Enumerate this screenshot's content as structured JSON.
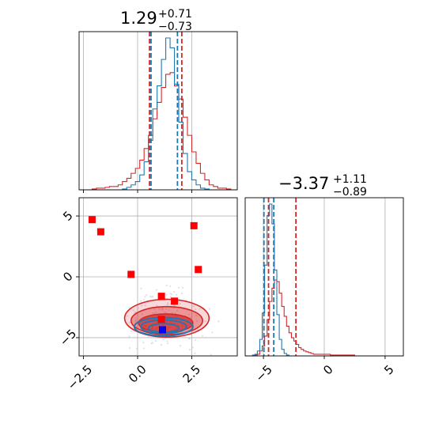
{
  "chart_data": {
    "type": "corner",
    "colors": {
      "series_a": "#1f77b4",
      "series_b": "#d62728",
      "marker_red": "#ff0000",
      "marker_blue": "#0000ff"
    },
    "grid": true,
    "parameters": [
      {
        "title": {
          "main": "1.29",
          "plus": "+0.71",
          "minus": "−0.73"
        },
        "xlim": [
          -2.7,
          4.6
        ],
        "series_a": {
          "quantile_lines": [
            0.62,
            1.84
          ],
          "hist_x": [
            -2.7,
            -2.5,
            -2.3,
            -2.1,
            -1.9,
            -1.7,
            -1.5,
            -1.3,
            -1.1,
            -0.9,
            -0.7,
            -0.5,
            -0.3,
            -0.1,
            0.1,
            0.3,
            0.5,
            0.7,
            0.9,
            1.1,
            1.3,
            1.5,
            1.7,
            1.9,
            2.1,
            2.3,
            2.5,
            2.7,
            2.9,
            3.1,
            3.3,
            3.5,
            3.7,
            3.9,
            4.1,
            4.3,
            4.6
          ],
          "hist_y": [
            0,
            0,
            0,
            0,
            0,
            0,
            0,
            0,
            0,
            0,
            0.5,
            1.5,
            3,
            5,
            9,
            17,
            30,
            49,
            63,
            79,
            92,
            86,
            64,
            41,
            22,
            11,
            6,
            3,
            1,
            0.5,
            0,
            0,
            0,
            0,
            0,
            0
          ]
        },
        "series_b": {
          "quantile_lines": [
            0.55,
            2.04
          ],
          "hist_x": [
            -2.7,
            -2.5,
            -2.3,
            -2.1,
            -1.9,
            -1.7,
            -1.5,
            -1.3,
            -1.1,
            -0.9,
            -0.7,
            -0.5,
            -0.3,
            -0.1,
            0.1,
            0.3,
            0.5,
            0.7,
            0.9,
            1.1,
            1.3,
            1.5,
            1.7,
            1.9,
            2.1,
            2.3,
            2.5,
            2.7,
            2.9,
            3.1,
            3.3,
            3.5,
            3.7,
            3.9,
            4.1,
            4.3,
            4.6
          ],
          "hist_y": [
            0,
            0,
            0,
            0.5,
            1,
            1,
            1.5,
            2,
            2,
            3,
            5,
            7,
            10,
            13,
            18,
            25,
            33,
            43,
            53,
            62,
            70,
            71,
            63,
            55,
            44,
            33,
            23,
            16,
            10,
            6,
            3,
            2,
            1,
            1,
            0.5,
            0
          ]
        }
      },
      {
        "title": {
          "main": "−3.37",
          "plus": "+1.11",
          "minus": "−0.89"
        },
        "xlim": [
          -6.5,
          6.5
        ],
        "series_a": {
          "quantile_lines": [
            -4.96,
            -4.15
          ],
          "hist_x": [
            -6.5,
            -6.3,
            -6.1,
            -5.9,
            -5.7,
            -5.5,
            -5.3,
            -5.1,
            -4.9,
            -4.7,
            -4.5,
            -4.3,
            -4.1,
            -3.9,
            -3.7,
            -3.5,
            -3.3,
            -3.1,
            -2.9,
            -2.7,
            -2.5,
            -2.3,
            -2.1,
            -1.9,
            -1.7,
            -1.5,
            -1.3,
            -1.1,
            -0.9,
            -0.7,
            -0.5,
            -0.3,
            -0.1,
            0.1,
            0.3,
            0.5,
            0.7,
            0.9,
            1.1,
            1.3,
            1.5,
            1.7,
            1.9,
            2.1,
            2.3,
            2.5,
            2.7,
            2.9,
            3.1,
            3.3,
            3.5,
            3.7,
            3.9,
            4.1,
            4.3,
            4.5,
            4.7,
            4.9,
            5.1,
            5.3,
            5.5,
            5.7,
            5.9,
            6.1,
            6.3,
            6.5
          ],
          "hist_y": [
            0,
            0,
            0,
            0.5,
            1,
            3,
            10,
            26,
            55,
            85,
            92,
            80,
            52,
            25,
            10,
            4,
            1.5,
            0.5,
            0,
            0,
            0,
            0,
            0,
            0,
            0,
            0,
            0,
            0,
            0,
            0,
            0,
            0,
            0,
            0,
            0,
            0,
            0,
            0,
            0,
            0,
            0,
            0,
            0,
            0,
            0,
            0,
            0,
            0,
            0,
            0,
            0,
            0,
            0,
            0,
            0,
            0,
            0,
            0,
            0,
            0,
            0,
            0,
            0,
            0,
            0
          ]
        },
        "series_b": {
          "quantile_lines": [
            -4.58,
            -2.33
          ],
          "hist_x": [
            -6.5,
            -6.3,
            -6.1,
            -5.9,
            -5.7,
            -5.5,
            -5.3,
            -5.1,
            -4.9,
            -4.7,
            -4.5,
            -4.3,
            -4.1,
            -3.9,
            -3.7,
            -3.5,
            -3.3,
            -3.1,
            -2.9,
            -2.7,
            -2.5,
            -2.3,
            -2.1,
            -1.9,
            -1.7,
            -1.5,
            -1.3,
            -1.1,
            -0.9,
            -0.7,
            -0.5,
            -0.3,
            -0.1,
            0.1,
            0.3,
            0.5,
            0.7,
            0.9,
            1.1,
            1.3,
            1.5,
            1.7,
            1.9,
            2.1,
            2.3,
            2.5,
            2.7,
            2.9,
            3.1,
            3.3,
            3.5,
            3.7,
            3.9,
            4.1,
            4.3,
            4.5,
            4.7,
            4.9,
            5.1,
            5.3,
            5.5,
            5.7,
            5.9,
            6.1,
            6.3,
            6.5
          ],
          "hist_y": [
            0,
            0,
            0,
            0,
            0.5,
            1,
            3,
            6,
            12,
            22,
            33,
            41,
            46,
            45,
            38,
            30,
            24,
            18,
            14,
            11,
            9,
            7,
            5,
            4,
            3,
            2.5,
            2,
            1.5,
            1,
            1,
            1,
            1,
            1,
            1,
            1,
            0.5,
            0.5,
            0.5,
            0.5,
            0.5,
            0.5,
            0.5,
            0.5,
            0.5,
            0.5,
            0,
            0,
            0,
            0,
            0,
            0,
            0,
            0,
            0,
            0,
            0,
            0,
            0,
            0,
            0,
            0,
            0,
            0,
            0,
            0
          ]
        }
      }
    ],
    "joint": {
      "xlim": [
        -2.7,
        4.6
      ],
      "ylim": [
        -6.5,
        6.5
      ],
      "red_markers": [
        [
          -2.1,
          4.7
        ],
        [
          -1.7,
          3.7
        ],
        [
          -0.3,
          0.2
        ],
        [
          2.6,
          4.2
        ],
        [
          2.8,
          0.6
        ],
        [
          1.1,
          -1.6
        ],
        [
          1.7,
          -2.0
        ],
        [
          1.1,
          -3.5
        ]
      ],
      "blue_markers": [
        [
          1.15,
          -4.35
        ]
      ],
      "series_b_contour_levels": [
        {
          "cx": 1.3,
          "cy": -3.8,
          "rx": 1.25,
          "ry": 0.75
        },
        {
          "cx": 1.35,
          "cy": -3.6,
          "rx": 1.65,
          "ry": 1.15
        },
        {
          "cx": 1.35,
          "cy": -3.4,
          "rx": 1.95,
          "ry": 1.55
        }
      ],
      "series_a_contour_levels": [
        {
          "cx": 1.2,
          "cy": -4.2,
          "rx": 0.7,
          "ry": 0.35
        },
        {
          "cx": 1.2,
          "cy": -4.1,
          "rx": 1.05,
          "ry": 0.55
        },
        {
          "cx": 1.2,
          "cy": -4.1,
          "rx": 1.35,
          "ry": 0.75
        }
      ]
    },
    "ticks": {
      "param1_x": [
        "−2.5",
        "0.0",
        "2.5"
      ],
      "param1_x_values": [
        -2.5,
        0.0,
        2.5
      ],
      "param2_x": [
        "−5",
        "0",
        "5"
      ],
      "param2_x_values": [
        -5,
        0,
        5
      ],
      "param2_y": [
        "5",
        "0",
        "−5"
      ],
      "param2_y_values": [
        5,
        0,
        -5
      ]
    }
  }
}
